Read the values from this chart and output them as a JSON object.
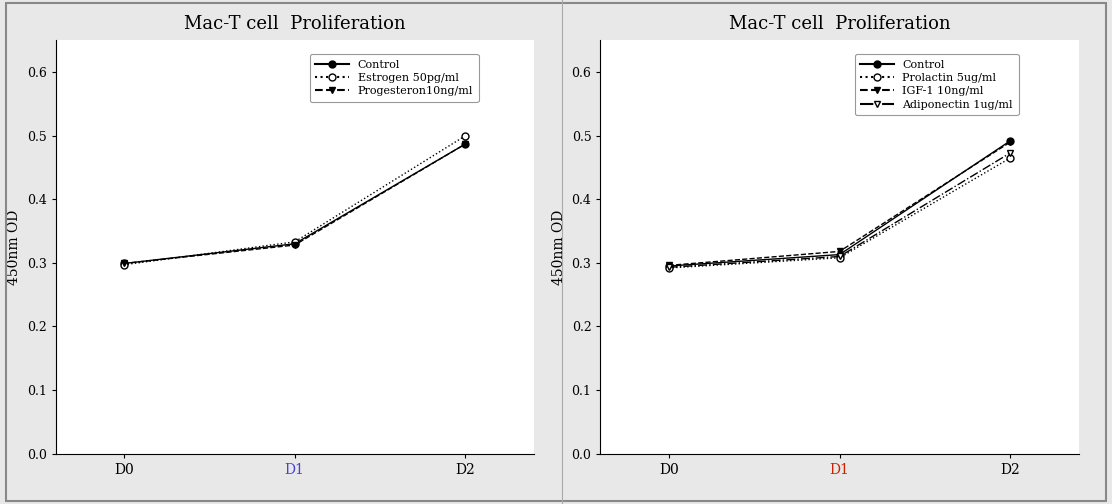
{
  "title": "Mac-T cell  Proliferation",
  "ylabel": "450nm OD",
  "xticks": [
    "D0",
    "D1",
    "D2"
  ],
  "ylim": [
    0.0,
    0.65
  ],
  "yticks": [
    0.0,
    0.1,
    0.2,
    0.3,
    0.4,
    0.5,
    0.6
  ],
  "left_series": [
    {
      "label": "Control",
      "values": [
        0.299,
        0.33,
        0.487
      ],
      "linestyle": "-",
      "marker": "o",
      "marker_filled": true,
      "color": "#000000"
    },
    {
      "label": "Estrogen 50pg/ml",
      "values": [
        0.297,
        0.333,
        0.5
      ],
      "linestyle": ":",
      "marker": "o",
      "marker_filled": false,
      "color": "#000000"
    },
    {
      "label": "Progesteron10ng/ml",
      "values": [
        0.299,
        0.328,
        0.487
      ],
      "linestyle": "--",
      "marker": "v",
      "marker_filled": true,
      "color": "#000000"
    }
  ],
  "right_series": [
    {
      "label": "Control",
      "values": [
        0.295,
        0.313,
        0.492
      ],
      "linestyle": "-",
      "marker": "o",
      "marker_filled": true,
      "color": "#000000"
    },
    {
      "label": "Prolactin 5ug/ml",
      "values": [
        0.292,
        0.308,
        0.465
      ],
      "linestyle": ":",
      "marker": "o",
      "marker_filled": false,
      "color": "#000000"
    },
    {
      "label": "IGF-1 10ng/ml",
      "values": [
        0.296,
        0.318,
        0.49
      ],
      "linestyle": "--",
      "marker": "v",
      "marker_filled": true,
      "color": "#000000"
    },
    {
      "label": "Adiponectin 1ug/ml",
      "values": [
        0.293,
        0.31,
        0.473
      ],
      "linestyle": "-.",
      "marker": "v",
      "marker_filled": false,
      "color": "#000000"
    }
  ],
  "background_color": "#ffffff",
  "outer_bg": "#e8e8e8",
  "title_fontsize": 13,
  "label_fontsize": 10,
  "tick_fontsize": 9,
  "legend_fontsize": 8,
  "xtick_colors_left": [
    "#000000",
    "#4444cc",
    "#000000"
  ],
  "xtick_colors_right": [
    "#000000",
    "#cc2200",
    "#000000"
  ]
}
